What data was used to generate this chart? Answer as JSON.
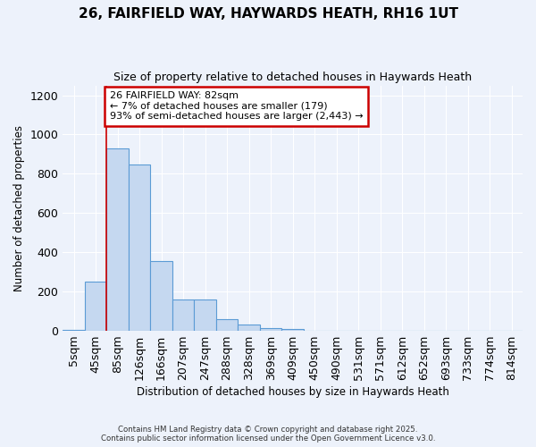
{
  "title1": "26, FAIRFIELD WAY, HAYWARDS HEATH, RH16 1UT",
  "title2": "Size of property relative to detached houses in Haywards Heath",
  "xlabel": "Distribution of detached houses by size in Haywards Heath",
  "ylabel": "Number of detached properties",
  "categories": [
    "5sqm",
    "45sqm",
    "85sqm",
    "126sqm",
    "166sqm",
    "207sqm",
    "247sqm",
    "288sqm",
    "328sqm",
    "369sqm",
    "409sqm",
    "450sqm",
    "490sqm",
    "531sqm",
    "571sqm",
    "612sqm",
    "652sqm",
    "693sqm",
    "733sqm",
    "774sqm",
    "814sqm"
  ],
  "values": [
    5,
    250,
    930,
    845,
    355,
    158,
    158,
    60,
    30,
    12,
    10,
    0,
    0,
    0,
    0,
    0,
    0,
    0,
    0,
    0,
    0
  ],
  "bar_color": "#c5d8f0",
  "bar_edge_color": "#5b9bd5",
  "background_color": "#edf2fb",
  "grid_color": "#ffffff",
  "ylim": [
    0,
    1250
  ],
  "yticks": [
    0,
    200,
    400,
    600,
    800,
    1000,
    1200
  ],
  "annotation_text": "26 FAIRFIELD WAY: 82sqm\n← 7% of detached houses are smaller (179)\n93% of semi-detached houses are larger (2,443) →",
  "annotation_box_color": "#ffffff",
  "annotation_box_edge": "#cc0000",
  "footer1": "Contains HM Land Registry data © Crown copyright and database right 2025.",
  "footer2": "Contains public sector information licensed under the Open Government Licence v3.0."
}
